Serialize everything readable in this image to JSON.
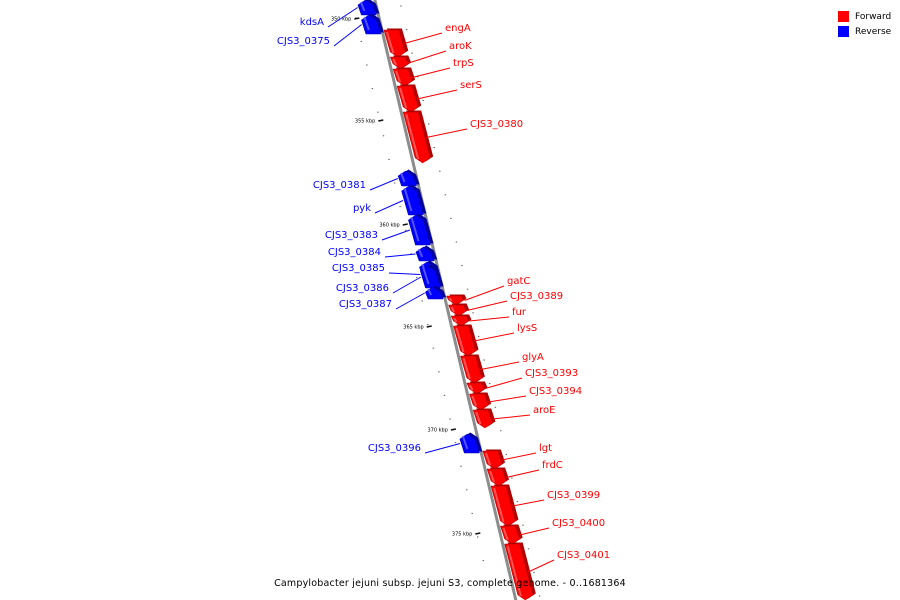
{
  "colors": {
    "forward": "#ff0000",
    "reverse": "#0000ff",
    "backbone": "#8c8c8c"
  },
  "legend": [
    {
      "label": "Forward",
      "color": "#ff0000"
    },
    {
      "label": "Reverse",
      "color": "#0000ff"
    }
  ],
  "caption": "Campylobacter jejuni subsp. jejuni S3, complete genome. - 0..1681364",
  "ticks": [
    "350 kbp",
    "355 kbp",
    "360 kbp",
    "365 kbp",
    "370 kbp",
    "375 kbp"
  ],
  "genes": [
    {
      "name": "kdsA",
      "strand": "reverse"
    },
    {
      "name": "CJS3_0375",
      "strand": "reverse"
    },
    {
      "name": "engA",
      "strand": "forward"
    },
    {
      "name": "aroK",
      "strand": "forward"
    },
    {
      "name": "trpS",
      "strand": "forward"
    },
    {
      "name": "serS",
      "strand": "forward"
    },
    {
      "name": "CJS3_0380",
      "strand": "forward"
    },
    {
      "name": "CJS3_0381",
      "strand": "reverse"
    },
    {
      "name": "pyk",
      "strand": "reverse"
    },
    {
      "name": "CJS3_0383",
      "strand": "reverse"
    },
    {
      "name": "CJS3_0384",
      "strand": "reverse"
    },
    {
      "name": "CJS3_0385",
      "strand": "reverse"
    },
    {
      "name": "CJS3_0386",
      "strand": "reverse"
    },
    {
      "name": "CJS3_0387",
      "strand": "reverse"
    },
    {
      "name": "gatC",
      "strand": "forward"
    },
    {
      "name": "CJS3_0389",
      "strand": "forward"
    },
    {
      "name": "fur",
      "strand": "forward"
    },
    {
      "name": "lysS",
      "strand": "forward"
    },
    {
      "name": "glyA",
      "strand": "forward"
    },
    {
      "name": "CJS3_0393",
      "strand": "forward"
    },
    {
      "name": "CJS3_0394",
      "strand": "forward"
    },
    {
      "name": "aroE",
      "strand": "forward"
    },
    {
      "name": "CJS3_0396",
      "strand": "reverse"
    },
    {
      "name": "lgt",
      "strand": "forward"
    },
    {
      "name": "frdC",
      "strand": "forward"
    },
    {
      "name": "CJS3_0399",
      "strand": "forward"
    },
    {
      "name": "CJS3_0400",
      "strand": "forward"
    },
    {
      "name": "CJS3_0401",
      "strand": "forward"
    }
  ]
}
